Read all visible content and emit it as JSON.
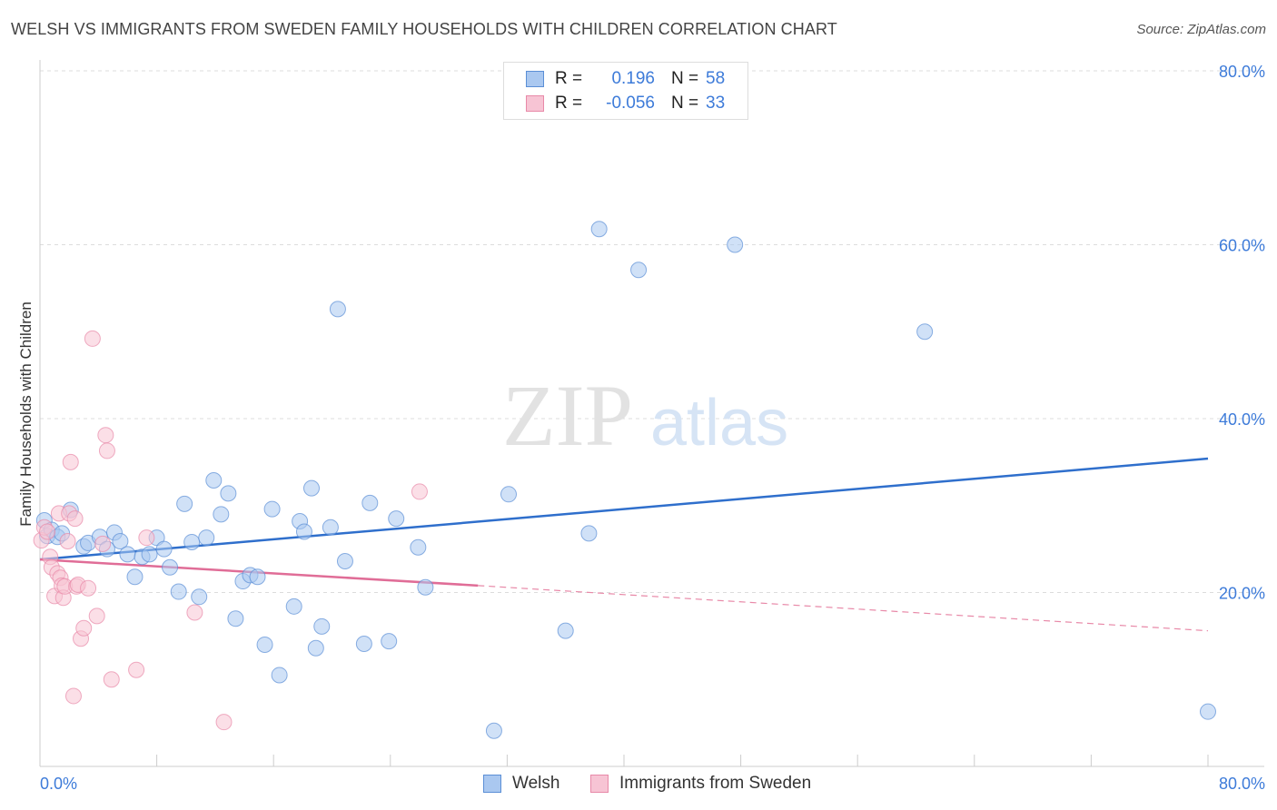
{
  "title": "WELSH VS IMMIGRANTS FROM SWEDEN FAMILY HOUSEHOLDS WITH CHILDREN CORRELATION CHART",
  "source": "Source: ZipAtlas.com",
  "watermark": {
    "zip": "ZIP",
    "atlas": "atlas"
  },
  "legend": {
    "rows": [
      {
        "r_label": "R =",
        "r_value": "0.196",
        "n_label": "N =",
        "n_value": "58",
        "color": "#5b8fd6",
        "fill": "#aac8f0"
      },
      {
        "r_label": "R =",
        "r_value": "-0.056",
        "n_label": "N =",
        "n_value": "33",
        "color": "#e889a8",
        "fill": "#f7c4d4"
      }
    ]
  },
  "bottom_legend": [
    {
      "label": "Welsh",
      "color": "#5b8fd6",
      "fill": "#aac8f0"
    },
    {
      "label": "Immigrants from Sweden",
      "color": "#e889a8",
      "fill": "#f7c4d4"
    }
  ],
  "chart_data": {
    "type": "scatter",
    "title": "WELSH VS IMMIGRANTS FROM SWEDEN FAMILY HOUSEHOLDS WITH CHILDREN CORRELATION CHART",
    "xlabel": "",
    "ylabel": "Family Households with Children",
    "xlim": [
      0,
      80
    ],
    "ylim": [
      0,
      80
    ],
    "x_tick_labels": [
      "0.0%",
      "80.0%"
    ],
    "y_tick_labels": [
      "20.0%",
      "40.0%",
      "60.0%",
      "80.0%"
    ],
    "y_ticks": [
      20,
      40,
      60,
      80
    ],
    "grid": "horizontal dashed",
    "legend_placement": "top-center",
    "series": [
      {
        "name": "Welsh",
        "color": "#5b8fd6",
        "fill": "#aac8f0",
        "trend": {
          "x": [
            0,
            80
          ],
          "y": [
            23.8,
            35.4
          ],
          "style": "solid"
        },
        "points": [
          [
            0.3,
            28.3
          ],
          [
            0.5,
            26.5
          ],
          [
            0.8,
            27.2
          ],
          [
            1.2,
            26.4
          ],
          [
            1.5,
            26.8
          ],
          [
            2.1,
            29.5
          ],
          [
            3.0,
            25.3
          ],
          [
            3.3,
            25.7
          ],
          [
            4.1,
            26.4
          ],
          [
            4.6,
            25.0
          ],
          [
            5.1,
            26.9
          ],
          [
            5.5,
            25.9
          ],
          [
            6.0,
            24.4
          ],
          [
            6.5,
            21.8
          ],
          [
            7.0,
            24.1
          ],
          [
            7.5,
            24.4
          ],
          [
            8.0,
            26.3
          ],
          [
            8.5,
            25.0
          ],
          [
            8.9,
            22.9
          ],
          [
            9.5,
            20.1
          ],
          [
            9.9,
            30.2
          ],
          [
            10.4,
            25.8
          ],
          [
            10.9,
            19.5
          ],
          [
            11.4,
            26.3
          ],
          [
            11.9,
            32.9
          ],
          [
            12.4,
            29.0
          ],
          [
            12.9,
            31.4
          ],
          [
            13.4,
            17.0
          ],
          [
            13.9,
            21.3
          ],
          [
            14.4,
            22.0
          ],
          [
            14.9,
            21.8
          ],
          [
            15.4,
            14.0
          ],
          [
            15.9,
            29.6
          ],
          [
            16.4,
            10.5
          ],
          [
            17.4,
            18.4
          ],
          [
            17.8,
            28.2
          ],
          [
            18.1,
            27.0
          ],
          [
            18.6,
            32.0
          ],
          [
            18.9,
            13.6
          ],
          [
            19.3,
            16.1
          ],
          [
            19.9,
            27.5
          ],
          [
            20.4,
            52.6
          ],
          [
            20.9,
            23.6
          ],
          [
            22.2,
            14.1
          ],
          [
            22.6,
            30.3
          ],
          [
            23.9,
            14.4
          ],
          [
            24.4,
            28.5
          ],
          [
            25.9,
            25.2
          ],
          [
            26.4,
            20.6
          ],
          [
            31.1,
            4.1
          ],
          [
            32.1,
            31.3
          ],
          [
            36.0,
            15.6
          ],
          [
            37.6,
            26.8
          ],
          [
            38.3,
            61.8
          ],
          [
            41.0,
            57.1
          ],
          [
            47.6,
            60.0
          ],
          [
            60.6,
            50.0
          ],
          [
            80.0,
            6.3
          ]
        ]
      },
      {
        "name": "Immigrants from Sweden",
        "color": "#e889a8",
        "fill": "#f7c4d4",
        "trend": {
          "x": [
            0,
            30
          ],
          "y": [
            23.8,
            20.8
          ],
          "style": "solid",
          "extended_to": [
            80,
            15.6
          ]
        },
        "points": [
          [
            0.1,
            26.0
          ],
          [
            0.3,
            27.5
          ],
          [
            0.5,
            27.0
          ],
          [
            0.7,
            24.1
          ],
          [
            0.8,
            22.9
          ],
          [
            1.0,
            19.6
          ],
          [
            1.2,
            22.2
          ],
          [
            1.3,
            29.1
          ],
          [
            1.4,
            21.7
          ],
          [
            1.5,
            20.8
          ],
          [
            1.6,
            19.4
          ],
          [
            1.7,
            20.7
          ],
          [
            1.9,
            25.9
          ],
          [
            2.0,
            29.1
          ],
          [
            2.1,
            35.0
          ],
          [
            2.3,
            8.1
          ],
          [
            2.4,
            28.5
          ],
          [
            2.5,
            20.7
          ],
          [
            2.6,
            20.9
          ],
          [
            2.8,
            14.7
          ],
          [
            3.0,
            15.9
          ],
          [
            3.3,
            20.5
          ],
          [
            3.6,
            49.2
          ],
          [
            3.9,
            17.3
          ],
          [
            4.3,
            25.6
          ],
          [
            4.5,
            38.1
          ],
          [
            4.6,
            36.3
          ],
          [
            4.9,
            10.0
          ],
          [
            6.6,
            11.1
          ],
          [
            7.3,
            26.3
          ],
          [
            10.6,
            17.7
          ],
          [
            12.6,
            5.1
          ],
          [
            26.0,
            31.6
          ]
        ]
      }
    ]
  }
}
